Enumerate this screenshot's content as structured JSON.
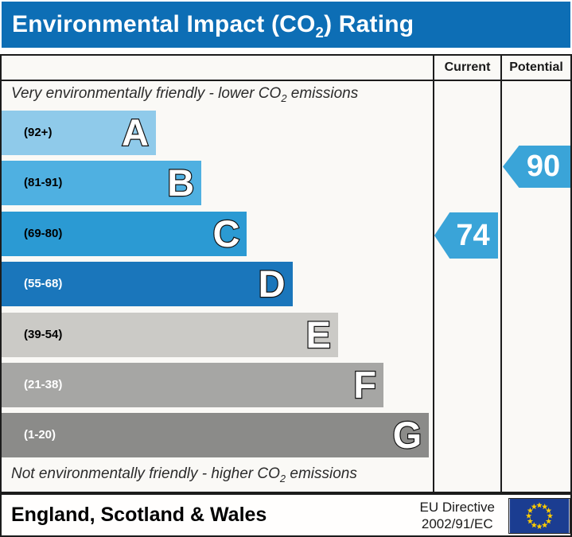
{
  "title": {
    "prefix": "Environmental Impact (CO",
    "subscript": "2",
    "suffix": ") Rating"
  },
  "table": {
    "columns": {
      "current": "Current",
      "potential": "Potential"
    },
    "note_top": {
      "prefix": "Very environmentally friendly - lower CO",
      "subscript": "2",
      "suffix": " emissions"
    },
    "note_bottom": {
      "prefix": "Not environmentally friendly - higher CO",
      "subscript": "2",
      "suffix": " emissions"
    }
  },
  "chart_data": {
    "type": "bar",
    "title": "Environmental Impact (CO2) Rating",
    "bands": [
      {
        "letter": "A",
        "range": "(92+)",
        "range_values": [
          92,
          100
        ],
        "color": "#8fcaea",
        "text_color": "#000000"
      },
      {
        "letter": "B",
        "range": "(81-91)",
        "range_values": [
          81,
          91
        ],
        "color": "#4fb0e1",
        "text_color": "#000000"
      },
      {
        "letter": "C",
        "range": "(69-80)",
        "range_values": [
          69,
          80
        ],
        "color": "#2b9ad3",
        "text_color": "#000000"
      },
      {
        "letter": "D",
        "range": "(55-68)",
        "range_values": [
          55,
          68
        ],
        "color": "#1a76bb",
        "text_color": "#ffffff"
      },
      {
        "letter": "E",
        "range": "(39-54)",
        "range_values": [
          39,
          54
        ],
        "color": "#cbcac6",
        "text_color": "#000000"
      },
      {
        "letter": "F",
        "range": "(21-38)",
        "range_values": [
          21,
          38
        ],
        "color": "#a6a6a4",
        "text_color": "#ffffff"
      },
      {
        "letter": "G",
        "range": "(1-20)",
        "range_values": [
          1,
          20
        ],
        "color": "#8b8b89",
        "text_color": "#ffffff"
      }
    ],
    "ratings": {
      "current": {
        "value": 74,
        "band": "C"
      },
      "potential": {
        "value": 90,
        "band": "B"
      }
    },
    "arrow_color": "#3aa4d8"
  },
  "footer": {
    "region": "England, Scotland & Wales",
    "directive_line1": "EU Directive",
    "directive_line2": "2002/91/EC",
    "flag_colors": {
      "background": "#1b3d91",
      "stars": "#ffcc00"
    }
  },
  "theme": {
    "title_bar": "#0d6eb5",
    "border": "#1c1c1c",
    "chart_background": "#faf9f6"
  }
}
